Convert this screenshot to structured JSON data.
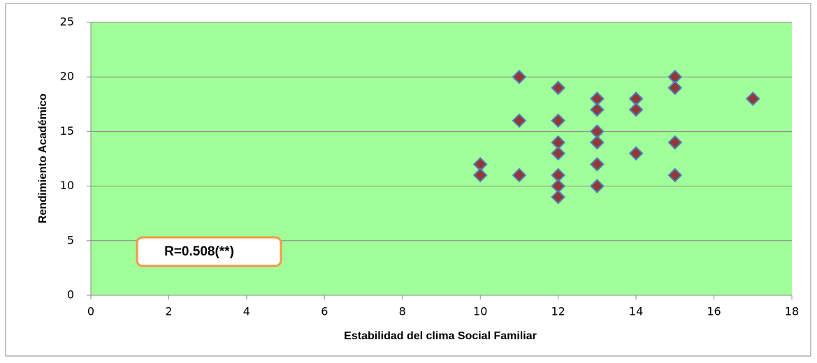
{
  "chart_data": {
    "type": "scatter",
    "x_label": "Estabilidad  del clima Social Familiar",
    "y_label": "Rendimiento Académico",
    "annotation": "R=0.508(**)",
    "series": [
      {
        "color": "#953735",
        "edge_color": "#4f81bd",
        "x": [
          10,
          10,
          11,
          11,
          11,
          12,
          12,
          12,
          12,
          12,
          12,
          12,
          13,
          13,
          13,
          13,
          13,
          13,
          14,
          14,
          14,
          15,
          15,
          15,
          15,
          17
        ],
        "values": [
          12,
          11,
          20,
          16,
          11,
          19,
          16,
          14,
          13,
          11,
          10,
          9,
          18,
          17,
          15,
          14,
          12,
          10,
          18,
          17,
          13,
          20,
          19,
          14,
          11,
          18
        ]
      }
    ],
    "xlim": [
      0,
      18
    ],
    "xticks": [
      0,
      2,
      4,
      6,
      8,
      10,
      12,
      14,
      16,
      18
    ],
    "ylim": [
      0,
      25
    ],
    "yticks": [
      0,
      5,
      10,
      15,
      20,
      25
    ],
    "grid": true,
    "background": "#a0ff99"
  }
}
